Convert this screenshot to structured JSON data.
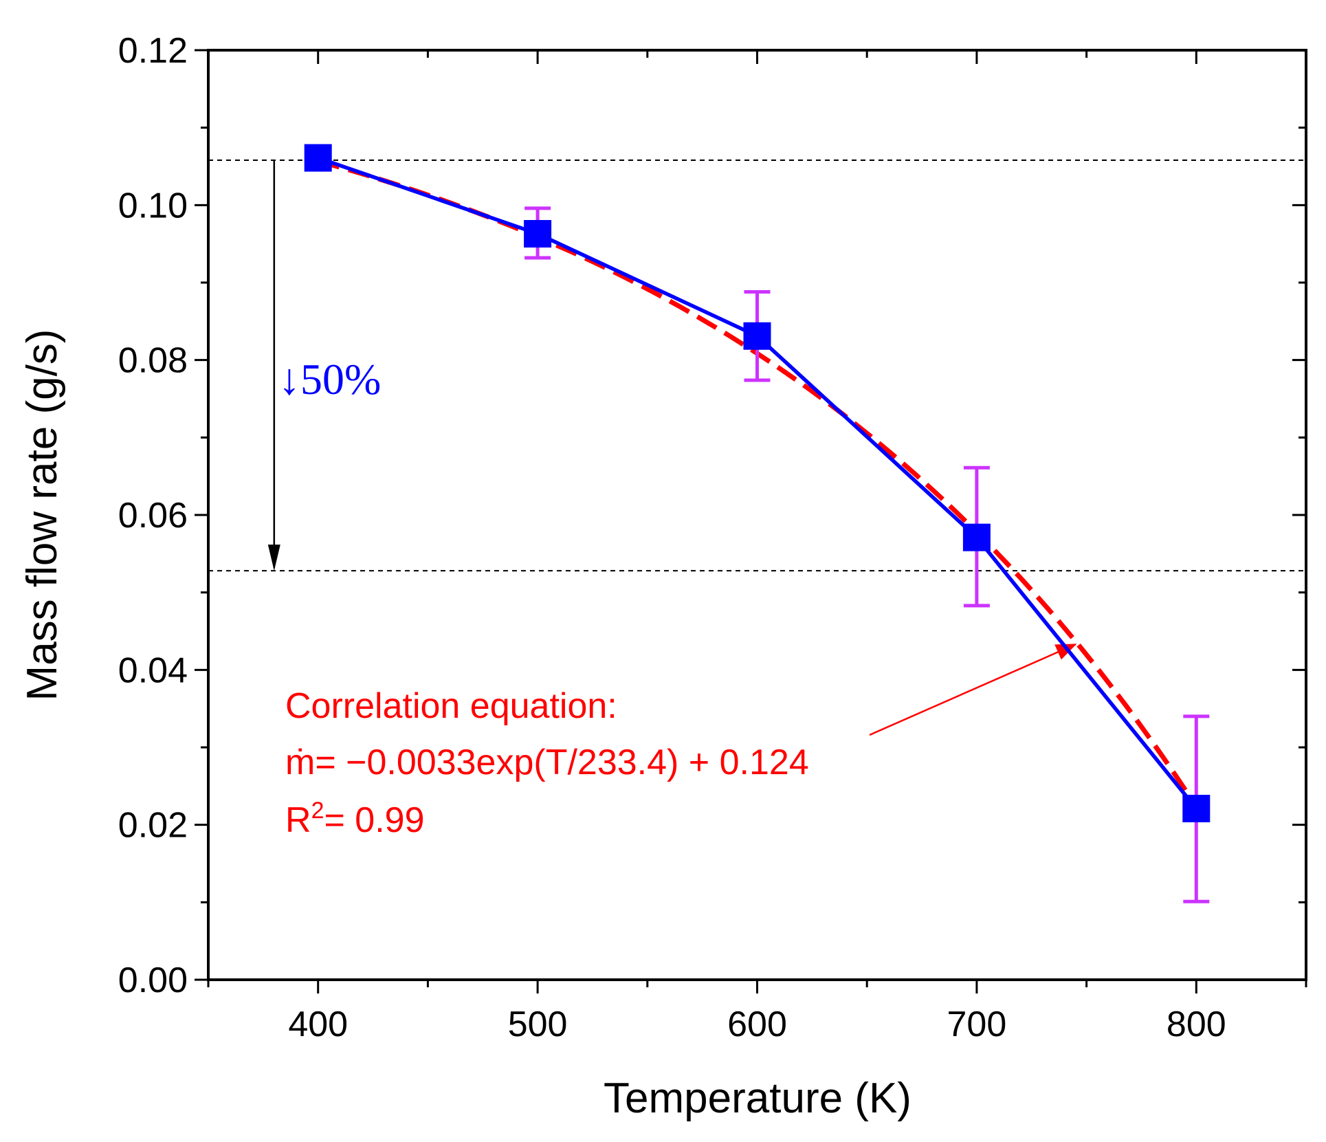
{
  "chart_data": {
    "type": "line",
    "xlabel": "Temperature (K)",
    "ylabel": "Mass flow rate (g/s)",
    "xlim": [
      350,
      850
    ],
    "ylim": [
      0.0,
      0.12
    ],
    "x_ticks": [
      400,
      500,
      600,
      700,
      800
    ],
    "x_tick_labels": [
      "400",
      "500",
      "600",
      "700",
      "800"
    ],
    "y_ticks": [
      0.0,
      0.02,
      0.04,
      0.06,
      0.08,
      0.1,
      0.12
    ],
    "y_tick_labels": [
      "0.00",
      "0.02",
      "0.04",
      "0.06",
      "0.08",
      "0.10",
      "0.12"
    ],
    "grid": false,
    "series": [
      {
        "kind": "measured",
        "color": "#0000ff",
        "marker": "square",
        "x": [
          400,
          500,
          600,
          700,
          800
        ],
        "y": [
          0.1061,
          0.0963,
          0.0831,
          0.0571,
          0.0221
        ],
        "error_low": [
          0.1061,
          0.0932,
          0.0774,
          0.0483,
          0.0101
        ],
        "error_high": [
          0.1061,
          0.0996,
          0.0888,
          0.0661,
          0.034
        ],
        "error_color": "#cc33ff"
      },
      {
        "kind": "fit",
        "color": "#ff0000",
        "style": "dashed",
        "equation": {
          "a": -0.0033,
          "b": 233.4,
          "c": 0.124
        },
        "x_range": [
          400,
          800
        ]
      }
    ],
    "reference_lines": [
      {
        "y": 0.1058,
        "style": "dotted",
        "color": "#000000"
      },
      {
        "y": 0.0528,
        "style": "dotted",
        "color": "#000000"
      }
    ],
    "drop_arrow": {
      "x": 380,
      "from_y": 0.1058,
      "to_y": 0.0528
    },
    "annotations": {
      "drop_label": "↓50%",
      "equation_title": "Correlation equation:",
      "equation_text": "ṁ= −0.0033exp(T/233.4) + 0.124",
      "r2_prefix": "R",
      "r2_sup": "2",
      "r2_value": "= 0.99",
      "equation_arrow_target": {
        "x": 745,
        "y": 0.0433
      }
    },
    "colors": {
      "measured": "#0000ff",
      "fit": "#ff0000",
      "error_bar": "#cc33ff",
      "annotation": "#ff0000",
      "drop_label": "#0000ff"
    }
  }
}
